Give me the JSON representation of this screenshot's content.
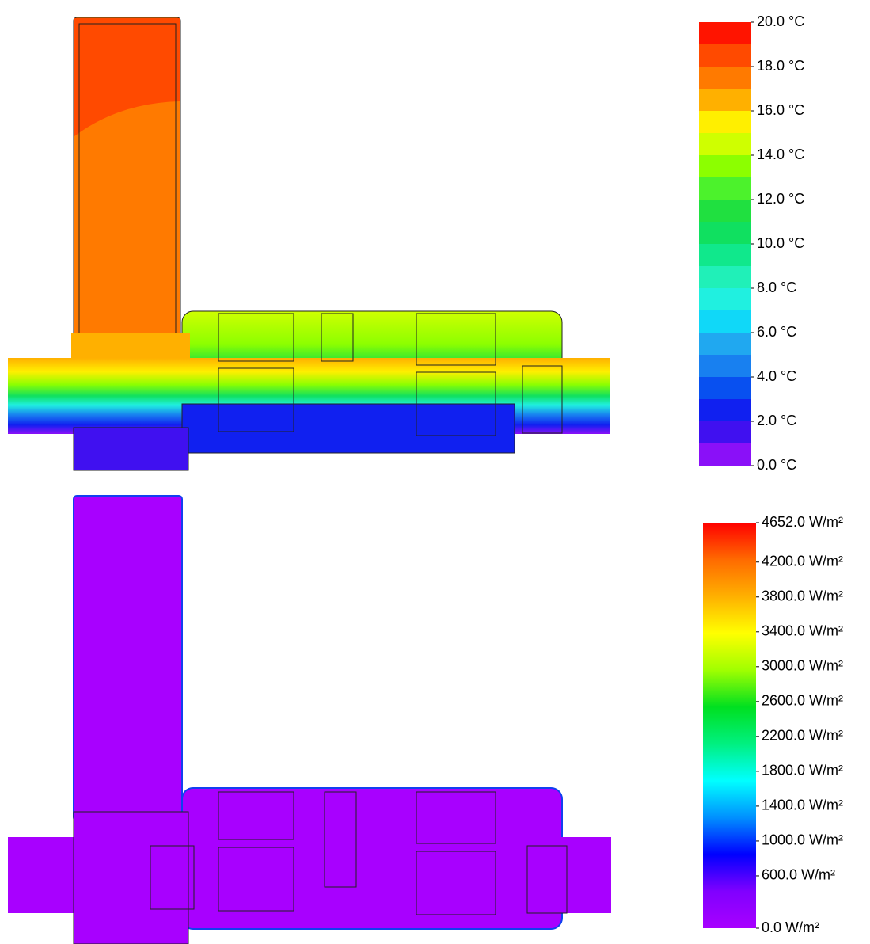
{
  "temperature": {
    "colors": [
      "#ff1400",
      "#ff4a00",
      "#ff7a00",
      "#ffb000",
      "#ffef00",
      "#cfff00",
      "#8cff00",
      "#4cf22c",
      "#20e040",
      "#10e060",
      "#10e88c",
      "#20f0b8",
      "#20f0e0",
      "#10d8f8",
      "#20a8f0",
      "#1880f0",
      "#0850f0",
      "#1020f0",
      "#4010f0",
      "#8a10f8"
    ],
    "ticks": [
      {
        "value": 20,
        "label": "20.0 °C"
      },
      {
        "value": 18,
        "label": "18.0 °C"
      },
      {
        "value": 16,
        "label": "16.0 °C"
      },
      {
        "value": 14,
        "label": "14.0 °C"
      },
      {
        "value": 12,
        "label": "12.0 °C"
      },
      {
        "value": 10,
        "label": "10.0 °C"
      },
      {
        "value": 8,
        "label": "8.0 °C"
      },
      {
        "value": 6,
        "label": "6.0 °C"
      },
      {
        "value": 4,
        "label": "4.0 °C"
      },
      {
        "value": 2,
        "label": "2.0 °C"
      },
      {
        "value": 0,
        "label": "0.0 °C"
      }
    ]
  },
  "heat_flux": {
    "colors": [
      "#ff0000",
      "#ff6a00",
      "#ffb000",
      "#ffff00",
      "#a0ff00",
      "#00e020",
      "#00f080",
      "#00ffff",
      "#0090ff",
      "#0000ff",
      "#8000ff",
      "#a800ff"
    ],
    "ticks": [
      {
        "value": 4652,
        "label": "4652.0 W/m²"
      },
      {
        "value": 4200,
        "label": "4200.0 W/m²"
      },
      {
        "value": 3800,
        "label": "3800.0 W/m²"
      },
      {
        "value": 3400,
        "label": "3400.0 W/m²"
      },
      {
        "value": 3000,
        "label": "3000.0 W/m²"
      },
      {
        "value": 2600,
        "label": "2600.0 W/m²"
      },
      {
        "value": 2200,
        "label": "2200.0 W/m²"
      },
      {
        "value": 1800,
        "label": "1800.0 W/m²"
      },
      {
        "value": 1400,
        "label": "1400.0 W/m²"
      },
      {
        "value": 1000,
        "label": "1000.0 W/m²"
      },
      {
        "value": 600,
        "label": "600.0 W/m²"
      },
      {
        "value": 0,
        "label": "0.0 W/m²"
      }
    ]
  }
}
